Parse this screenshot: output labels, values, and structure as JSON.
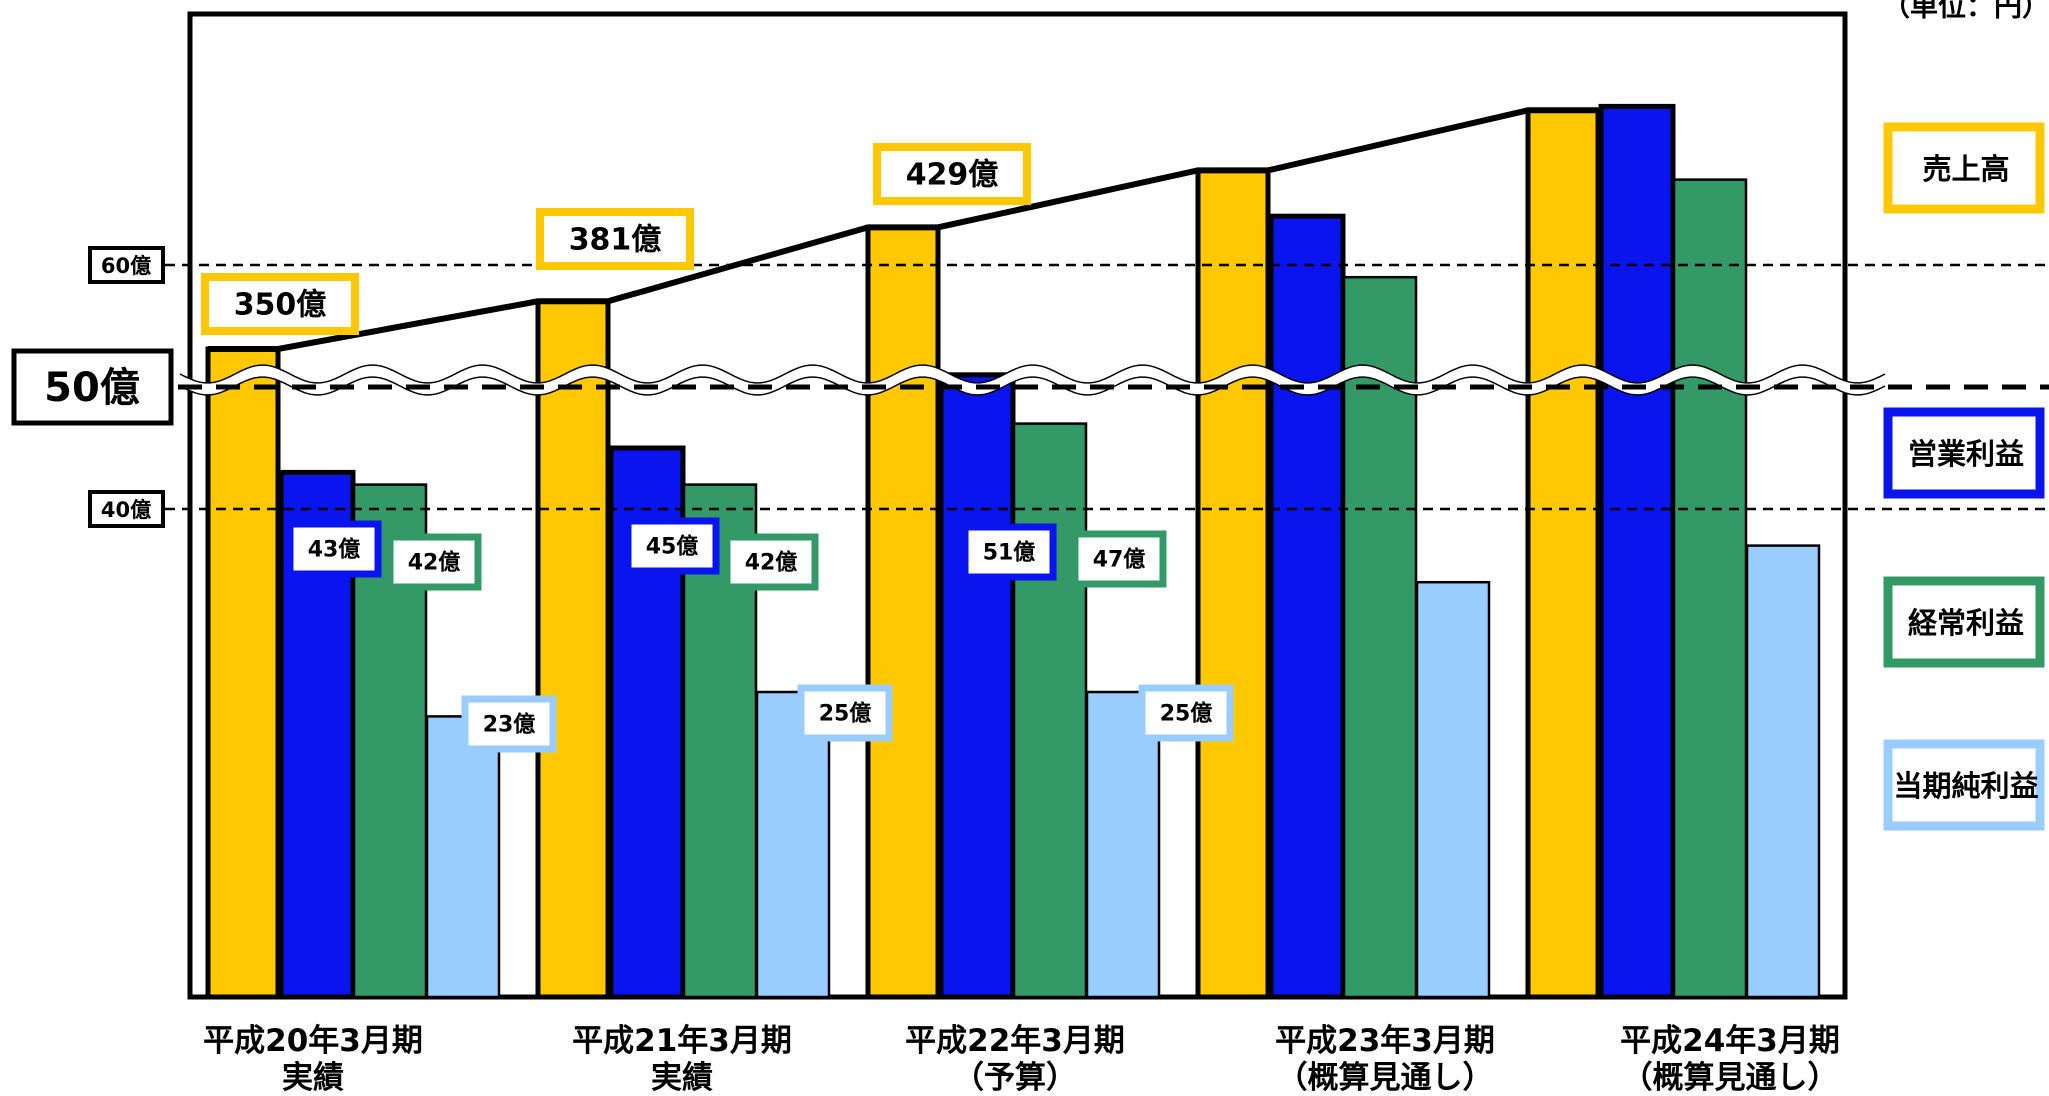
{
  "chart_data": {
    "type": "bar",
    "unit": "（単位：円）",
    "categories": [
      {
        "line1": "平成20年3月期",
        "line2": "実績"
      },
      {
        "line1": "平成21年3月期",
        "line2": "実績"
      },
      {
        "line1": "平成22年3月期",
        "line2": "（予算）"
      },
      {
        "line1": "平成23年3月期",
        "line2": "（概算見通し）"
      },
      {
        "line1": "平成24年3月期",
        "line2": "（概算見通し）"
      }
    ],
    "series": [
      {
        "name": "売上高",
        "color": "#FFC800",
        "values": [
          350,
          381,
          429,
          466,
          505
        ],
        "labels": [
          "350億",
          "381億",
          "429億",
          "",
          ""
        ]
      },
      {
        "name": "営業利益",
        "color": "#0A14EE",
        "values": [
          43,
          45,
          51,
          64,
          73
        ],
        "labels": [
          "43億",
          "45億",
          "51億",
          "",
          ""
        ]
      },
      {
        "name": "経常利益",
        "color": "#339966",
        "values": [
          42,
          42,
          47,
          59,
          67
        ],
        "labels": [
          "42億",
          "42億",
          "47億",
          "",
          ""
        ]
      },
      {
        "name": "当期純利益",
        "color": "#99CCFF",
        "values": [
          23,
          25,
          25,
          34,
          37
        ],
        "labels": [
          "23億",
          "25億",
          "25億",
          "",
          ""
        ]
      }
    ],
    "axis_break": true,
    "reference_lines": [
      {
        "value": 60,
        "label": "60億",
        "style": "dashed-thin"
      },
      {
        "value": 50,
        "label": "50億",
        "style": "dashed-thick"
      },
      {
        "value": 40,
        "label": "40億",
        "style": "dashed-thin"
      }
    ],
    "legend_position": "right",
    "grid": false
  }
}
